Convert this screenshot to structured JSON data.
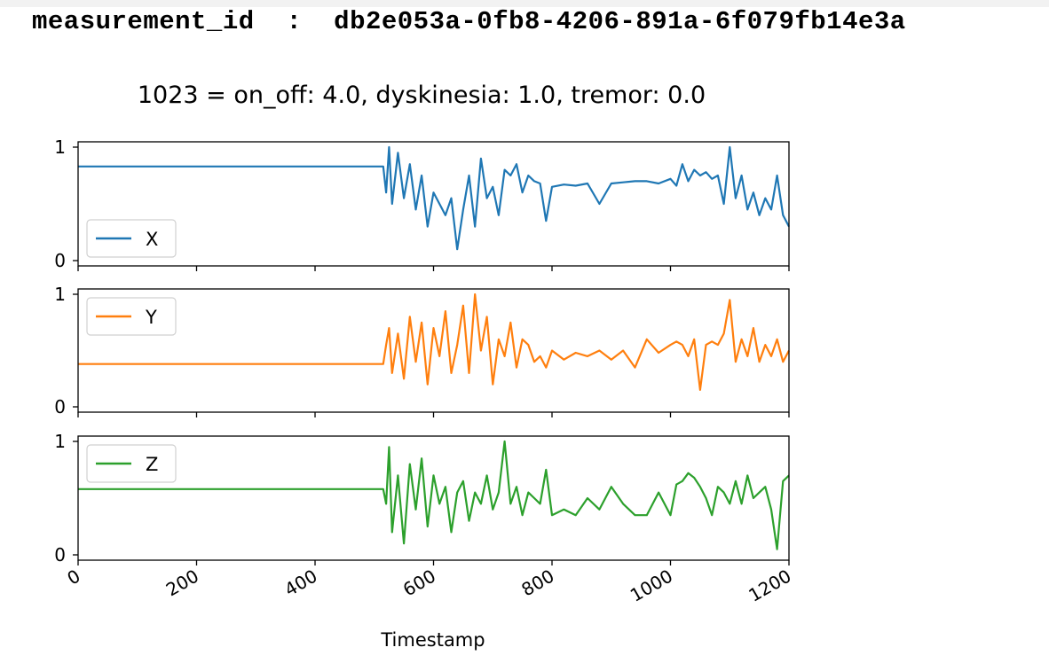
{
  "header": {
    "key": "measurement_id",
    "separator": ":",
    "value": "db2e053a-0fb8-4206-891a-6f079fb14e3a"
  },
  "colors": {
    "X": "#1f77b4",
    "Y": "#ff7f0e",
    "Z": "#2ca02c"
  },
  "chart_data": {
    "type": "line",
    "title": "1023 = on_off: 4.0, dyskinesia: 1.0, tremor: 0.0",
    "xlabel": "Timestamp",
    "xlim": [
      0,
      1200
    ],
    "xticks": [
      "0",
      "200",
      "400",
      "600",
      "800",
      "1000",
      "1200"
    ],
    "subplots": [
      {
        "name": "X",
        "legend_position": "lower-left",
        "ylim": [
          0,
          1
        ],
        "yticks": [
          "0",
          "1"
        ],
        "x": [
          0,
          100,
          200,
          300,
          400,
          450,
          500,
          515,
          520,
          525,
          530,
          540,
          550,
          560,
          570,
          580,
          590,
          600,
          610,
          620,
          630,
          640,
          650,
          660,
          670,
          680,
          690,
          700,
          710,
          720,
          730,
          740,
          750,
          760,
          770,
          780,
          790,
          800,
          820,
          840,
          860,
          880,
          900,
          920,
          940,
          960,
          980,
          1000,
          1010,
          1020,
          1030,
          1040,
          1050,
          1060,
          1070,
          1080,
          1090,
          1100,
          1110,
          1120,
          1130,
          1140,
          1150,
          1160,
          1170,
          1180,
          1190,
          1200
        ],
        "values": [
          0.83,
          0.83,
          0.83,
          0.83,
          0.83,
          0.83,
          0.83,
          0.83,
          0.6,
          1.0,
          0.5,
          0.95,
          0.55,
          0.85,
          0.45,
          0.75,
          0.3,
          0.6,
          0.5,
          0.4,
          0.55,
          0.1,
          0.45,
          0.75,
          0.3,
          0.9,
          0.55,
          0.65,
          0.4,
          0.8,
          0.75,
          0.85,
          0.6,
          0.75,
          0.7,
          0.68,
          0.35,
          0.65,
          0.67,
          0.66,
          0.68,
          0.5,
          0.68,
          0.69,
          0.7,
          0.7,
          0.68,
          0.72,
          0.66,
          0.85,
          0.7,
          0.8,
          0.75,
          0.78,
          0.72,
          0.75,
          0.5,
          1.0,
          0.55,
          0.75,
          0.45,
          0.6,
          0.4,
          0.55,
          0.45,
          0.75,
          0.4,
          0.3
        ]
      },
      {
        "name": "Y",
        "legend_position": "upper-left",
        "ylim": [
          0,
          1
        ],
        "yticks": [
          "0",
          "1"
        ],
        "x": [
          0,
          100,
          200,
          300,
          400,
          450,
          500,
          515,
          520,
          525,
          530,
          540,
          550,
          560,
          570,
          580,
          590,
          600,
          610,
          620,
          630,
          640,
          650,
          660,
          670,
          680,
          690,
          700,
          710,
          720,
          730,
          740,
          750,
          760,
          770,
          780,
          790,
          800,
          820,
          840,
          860,
          880,
          900,
          920,
          940,
          960,
          980,
          1000,
          1010,
          1020,
          1030,
          1040,
          1050,
          1060,
          1070,
          1080,
          1090,
          1100,
          1110,
          1120,
          1130,
          1140,
          1150,
          1160,
          1170,
          1180,
          1190,
          1200
        ],
        "values": [
          0.38,
          0.38,
          0.38,
          0.38,
          0.38,
          0.38,
          0.38,
          0.38,
          0.55,
          0.7,
          0.3,
          0.65,
          0.25,
          0.8,
          0.4,
          0.75,
          0.2,
          0.7,
          0.45,
          0.85,
          0.3,
          0.55,
          0.9,
          0.3,
          1.0,
          0.5,
          0.8,
          0.2,
          0.6,
          0.45,
          0.75,
          0.35,
          0.6,
          0.55,
          0.4,
          0.45,
          0.35,
          0.5,
          0.42,
          0.48,
          0.45,
          0.5,
          0.42,
          0.5,
          0.35,
          0.6,
          0.48,
          0.55,
          0.58,
          0.55,
          0.45,
          0.6,
          0.15,
          0.55,
          0.58,
          0.55,
          0.65,
          0.95,
          0.4,
          0.6,
          0.45,
          0.7,
          0.4,
          0.55,
          0.45,
          0.6,
          0.4,
          0.5
        ]
      },
      {
        "name": "Z",
        "legend_position": "upper-left",
        "ylim": [
          0,
          1
        ],
        "yticks": [
          "0",
          "1"
        ],
        "x": [
          0,
          100,
          200,
          300,
          400,
          450,
          500,
          515,
          520,
          525,
          530,
          540,
          550,
          560,
          570,
          580,
          590,
          600,
          610,
          620,
          630,
          640,
          650,
          660,
          670,
          680,
          690,
          700,
          710,
          720,
          730,
          740,
          750,
          760,
          770,
          780,
          790,
          800,
          820,
          840,
          860,
          880,
          900,
          920,
          940,
          960,
          980,
          1000,
          1010,
          1020,
          1030,
          1040,
          1050,
          1060,
          1070,
          1080,
          1090,
          1100,
          1110,
          1120,
          1130,
          1140,
          1150,
          1160,
          1170,
          1180,
          1190,
          1200
        ],
        "values": [
          0.58,
          0.58,
          0.58,
          0.58,
          0.58,
          0.58,
          0.58,
          0.58,
          0.45,
          0.95,
          0.2,
          0.7,
          0.1,
          0.8,
          0.4,
          0.85,
          0.25,
          0.7,
          0.45,
          0.6,
          0.2,
          0.55,
          0.65,
          0.3,
          0.55,
          0.45,
          0.7,
          0.4,
          0.55,
          1.0,
          0.45,
          0.6,
          0.35,
          0.55,
          0.5,
          0.45,
          0.75,
          0.35,
          0.4,
          0.35,
          0.5,
          0.4,
          0.6,
          0.45,
          0.35,
          0.35,
          0.55,
          0.35,
          0.62,
          0.65,
          0.72,
          0.68,
          0.6,
          0.5,
          0.35,
          0.6,
          0.55,
          0.45,
          0.65,
          0.45,
          0.7,
          0.5,
          0.55,
          0.6,
          0.4,
          0.05,
          0.65,
          0.7
        ]
      }
    ]
  }
}
